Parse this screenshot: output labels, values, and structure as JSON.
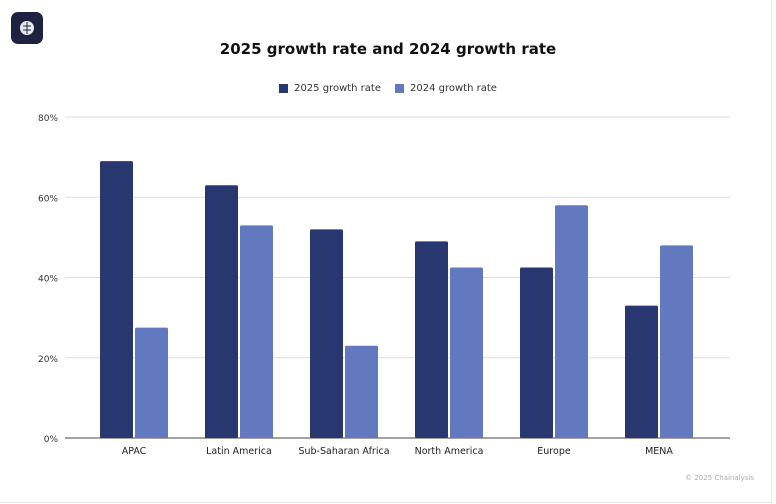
{
  "logo_text": "Chainalysis",
  "chart_data": {
    "type": "bar",
    "title": "2025 growth rate and 2024 growth rate",
    "categories": [
      "APAC",
      "Latin America",
      "Sub-Saharan Africa",
      "North America",
      "Europe",
      "MENA"
    ],
    "series": [
      {
        "name": "2025 growth rate",
        "color": "#283770",
        "values": [
          69,
          63,
          52,
          49,
          42.5,
          33
        ]
      },
      {
        "name": "2024 growth rate",
        "color": "#6279bf",
        "values": [
          27.5,
          53,
          23,
          42.5,
          58,
          48
        ]
      }
    ],
    "ylim": [
      0,
      80
    ],
    "yticks": [
      0,
      20,
      40,
      60,
      80
    ],
    "ytick_labels": [
      "0%",
      "20%",
      "40%",
      "60%",
      "80%"
    ],
    "xlabel": "",
    "ylabel": "",
    "grid": true,
    "legend_position": "top-center"
  },
  "footer": "© 2025 Chainalysis"
}
